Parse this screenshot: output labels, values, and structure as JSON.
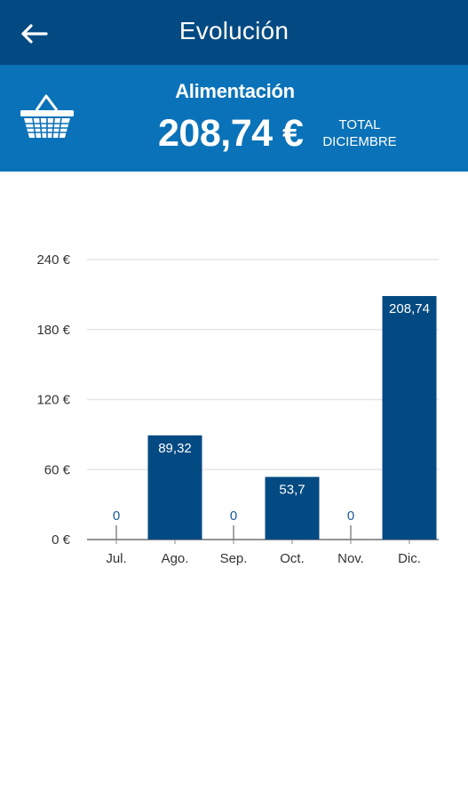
{
  "header": {
    "title": "Evolución",
    "back_icon": "arrow-left-icon"
  },
  "summary": {
    "category": "Alimentación",
    "category_icon": "shopping-basket-icon",
    "amount": "208,74 €",
    "total_line1": "TOTAL",
    "total_line2": "DICIEMBRE"
  },
  "colors": {
    "topbar": "#044a82",
    "band": "#0a72b8",
    "bar": "#044a82",
    "value_on_bar": "#ffffff",
    "value_zero": "#1a5a96",
    "axis_text": "#333333",
    "grid": "#e6e6e6"
  },
  "chart_data": {
    "type": "bar",
    "categories": [
      "Jul.",
      "Ago.",
      "Sep.",
      "Oct.",
      "Nov.",
      "Dic."
    ],
    "values": [
      0,
      89.32,
      0,
      53.7,
      0,
      208.74
    ],
    "value_labels": [
      "0",
      "89,32",
      "0",
      "53,7",
      "0",
      "208,74"
    ],
    "y_ticks": [
      0,
      60,
      120,
      180,
      240
    ],
    "y_tick_labels": [
      "0 €",
      "60 €",
      "120 €",
      "180 €",
      "240 €"
    ],
    "ylim": [
      0,
      240
    ],
    "grid": true,
    "legend": false
  }
}
